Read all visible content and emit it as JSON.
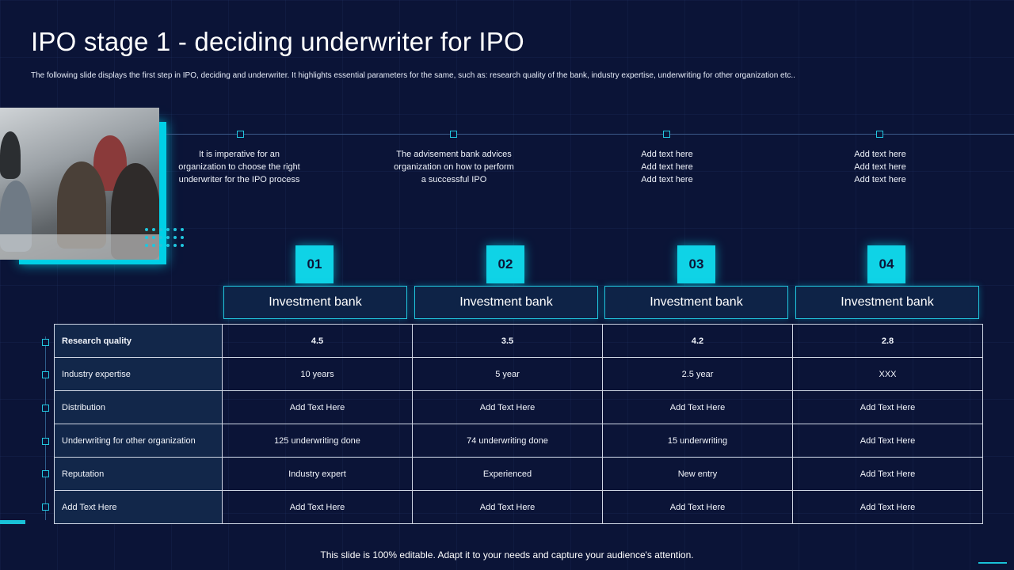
{
  "title": "IPO stage 1 - deciding underwriter for IPO",
  "subtitle": "The following slide displays the first step in IPO, deciding and underwriter. It highlights essential parameters for the same, such as: research quality of the bank, industry expertise, underwriting for other organization etc..",
  "timeline": [
    {
      "text": "It is imperative for an organization to choose the right underwriter for the IPO process"
    },
    {
      "text": "The advisement bank advices organization on how to perform a successful IPO"
    },
    {
      "text": "Add text here\nAdd text here\nAdd text here"
    },
    {
      "text": "Add text here\nAdd text here\nAdd text here"
    }
  ],
  "columns": [
    {
      "number": "01",
      "label": "Investment bank"
    },
    {
      "number": "02",
      "label": "Investment bank"
    },
    {
      "number": "03",
      "label": "Investment bank"
    },
    {
      "number": "04",
      "label": "Investment bank"
    }
  ],
  "table": {
    "rows": [
      {
        "label": "Research quality",
        "values": [
          "4.5",
          "3.5",
          "4.2",
          "2.8"
        ]
      },
      {
        "label": "Industry expertise",
        "values": [
          "10 years",
          "5 year",
          "2.5 year",
          "XXX"
        ]
      },
      {
        "label": "Distribution",
        "values": [
          "Add Text Here",
          "Add Text Here",
          "Add Text Here",
          "Add Text Here"
        ]
      },
      {
        "label": "Underwriting for other organization",
        "values": [
          "125 underwriting done",
          "74 underwriting done",
          "15 underwriting",
          "Add Text Here"
        ]
      },
      {
        "label": "Reputation",
        "values": [
          "Industry expert",
          "Experienced",
          "New entry",
          "Add Text Here"
        ]
      },
      {
        "label": "Add Text Here",
        "values": [
          "Add Text Here",
          "Add Text Here",
          "Add Text Here",
          "Add Text Here"
        ]
      }
    ]
  },
  "footer": "This slide is 100% editable. Adapt it to your needs and capture your audience's attention.",
  "colors": {
    "background": "#0b1437",
    "accent": "#0fd3e6"
  },
  "photo": {
    "icon": "meeting-photo"
  }
}
